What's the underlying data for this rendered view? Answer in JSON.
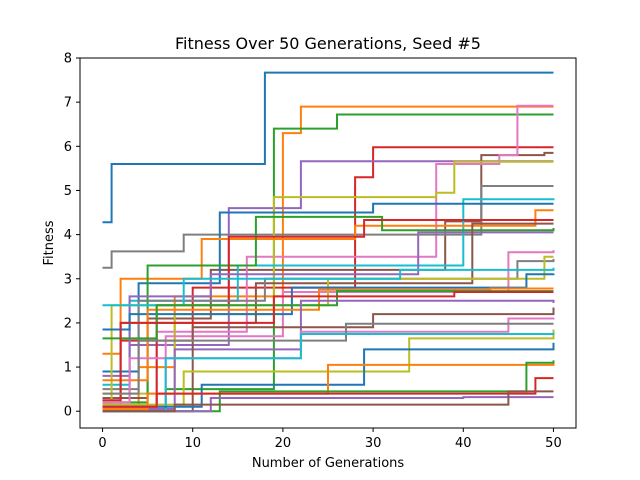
{
  "chart_data": {
    "type": "line",
    "title": "Fitness Over 50 Generations, Seed #5",
    "xlabel": "Number of Generations",
    "ylabel": "Fitness",
    "xlim": [
      -2.5,
      52.5
    ],
    "ylim": [
      -0.38,
      8.0
    ],
    "xticks": [
      0,
      10,
      20,
      30,
      40,
      50
    ],
    "yticks": [
      0,
      1,
      2,
      3,
      4,
      5,
      6,
      7,
      8
    ],
    "grid": false,
    "colors": [
      "#1f77b4",
      "#ff7f0e",
      "#2ca02c",
      "#d62728",
      "#9467bd",
      "#8c564b",
      "#e377c2",
      "#7f7f7f",
      "#bcbd22",
      "#17becf"
    ],
    "series": [
      {
        "x": [
          0,
          1,
          18,
          50
        ],
        "y": [
          4.28,
          5.6,
          7.67,
          7.67
        ]
      },
      {
        "x": [
          0,
          4,
          8,
          20,
          22,
          50
        ],
        "y": [
          0.1,
          1.0,
          2.6,
          6.3,
          6.9,
          6.9
        ]
      },
      {
        "x": [
          0,
          7,
          19,
          26,
          50
        ],
        "y": [
          0.05,
          0.5,
          6.4,
          6.72,
          6.72
        ]
      },
      {
        "x": [
          0,
          2,
          10,
          28,
          30,
          50
        ],
        "y": [
          0.0,
          1.6,
          2.8,
          5.3,
          5.98,
          5.98
        ]
      },
      {
        "x": [
          0,
          3,
          14,
          22,
          50
        ],
        "y": [
          0.2,
          1.5,
          4.6,
          5.66,
          5.66
        ]
      },
      {
        "x": [
          0,
          5,
          12,
          38,
          42,
          49,
          50
        ],
        "y": [
          0.3,
          2.1,
          3.2,
          4.3,
          5.8,
          5.85,
          5.85
        ]
      },
      {
        "x": [
          0,
          6,
          16,
          37,
          44,
          46,
          50
        ],
        "y": [
          0.1,
          1.8,
          3.5,
          5.6,
          5.8,
          6.92,
          6.92
        ]
      },
      {
        "x": [
          0,
          1,
          9,
          42,
          50
        ],
        "y": [
          3.25,
          3.62,
          4.0,
          5.1,
          5.1
        ]
      },
      {
        "x": [
          0,
          8,
          19,
          37,
          39,
          50
        ],
        "y": [
          0.4,
          2.2,
          4.85,
          4.95,
          5.65,
          5.65
        ]
      },
      {
        "x": [
          0,
          3,
          15,
          40,
          50
        ],
        "y": [
          0.6,
          2.5,
          3.3,
          4.8,
          4.82
        ]
      },
      {
        "x": [
          0,
          4,
          13,
          30,
          50
        ],
        "y": [
          0.9,
          2.9,
          4.5,
          4.7,
          4.7
        ]
      },
      {
        "x": [
          0,
          2,
          11,
          28,
          48,
          50
        ],
        "y": [
          1.3,
          3.0,
          3.9,
          4.2,
          4.55,
          4.55
        ]
      },
      {
        "x": [
          0,
          5,
          17,
          31,
          50
        ],
        "y": [
          0.2,
          3.3,
          4.4,
          4.1,
          4.15
        ]
      },
      {
        "x": [
          0,
          6,
          14,
          29,
          50
        ],
        "y": [
          0.05,
          2.4,
          3.95,
          4.33,
          4.33
        ]
      },
      {
        "x": [
          0,
          3,
          12,
          35,
          50
        ],
        "y": [
          0.8,
          2.6,
          3.1,
          4.05,
          4.05
        ]
      },
      {
        "x": [
          0,
          2,
          17,
          41,
          50
        ],
        "y": [
          0.3,
          2.0,
          2.9,
          4.25,
          4.25
        ]
      },
      {
        "x": [
          0,
          7,
          20,
          45,
          50
        ],
        "y": [
          0.1,
          1.7,
          2.7,
          3.6,
          3.65
        ]
      },
      {
        "x": [
          0,
          4,
          18,
          46,
          50
        ],
        "y": [
          0.5,
          2.5,
          3.0,
          3.4,
          3.45
        ]
      },
      {
        "x": [
          0,
          1,
          25,
          49,
          50
        ],
        "y": [
          0.15,
          2.4,
          3.0,
          3.5,
          3.5
        ]
      },
      {
        "x": [
          0,
          9,
          33,
          50
        ],
        "y": [
          2.4,
          3.0,
          3.2,
          3.25
        ]
      },
      {
        "x": [
          0,
          3,
          21,
          47,
          50
        ],
        "y": [
          1.85,
          2.2,
          2.8,
          3.1,
          3.12
        ]
      },
      {
        "x": [
          0,
          5,
          24,
          43,
          50
        ],
        "y": [
          0.7,
          2.3,
          2.75,
          2.78,
          2.78
        ]
      },
      {
        "x": [
          0,
          6,
          26,
          50
        ],
        "y": [
          1.65,
          2.4,
          2.72,
          2.72
        ]
      },
      {
        "x": [
          0,
          2,
          19,
          39,
          50
        ],
        "y": [
          0.25,
          2.0,
          2.6,
          2.7,
          2.7
        ]
      },
      {
        "x": [
          0,
          8,
          22,
          50
        ],
        "y": [
          0.05,
          1.4,
          2.5,
          2.45
        ]
      },
      {
        "x": [
          0,
          10,
          30,
          50
        ],
        "y": [
          0.0,
          1.9,
          2.2,
          2.35
        ]
      },
      {
        "x": [
          0,
          3,
          22,
          45,
          50
        ],
        "y": [
          0.2,
          1.2,
          1.8,
          2.1,
          2.12
        ]
      },
      {
        "x": [
          0,
          4,
          27,
          50
        ],
        "y": [
          0.4,
          1.6,
          1.98,
          1.98
        ]
      },
      {
        "x": [
          0,
          9,
          34,
          50
        ],
        "y": [
          0.15,
          0.9,
          1.65,
          1.85
        ]
      },
      {
        "x": [
          0,
          7,
          22,
          50
        ],
        "y": [
          0.0,
          1.2,
          1.75,
          1.78
        ]
      },
      {
        "x": [
          0,
          11,
          29,
          50
        ],
        "y": [
          0.1,
          0.6,
          1.4,
          1.55
        ]
      },
      {
        "x": [
          0,
          5,
          25,
          50
        ],
        "y": [
          0.05,
          0.4,
          1.05,
          1.1
        ]
      },
      {
        "x": [
          0,
          13,
          47,
          50
        ],
        "y": [
          0.0,
          0.45,
          1.1,
          1.15
        ]
      },
      {
        "x": [
          0,
          6,
          48,
          50
        ],
        "y": [
          0.1,
          0.4,
          0.75,
          0.75
        ]
      },
      {
        "x": [
          0,
          12,
          40,
          50
        ],
        "y": [
          0.0,
          0.3,
          0.32,
          0.32
        ]
      },
      {
        "x": [
          0,
          8,
          45,
          50
        ],
        "y": [
          0.0,
          0.15,
          0.45,
          0.45
        ]
      }
    ]
  }
}
